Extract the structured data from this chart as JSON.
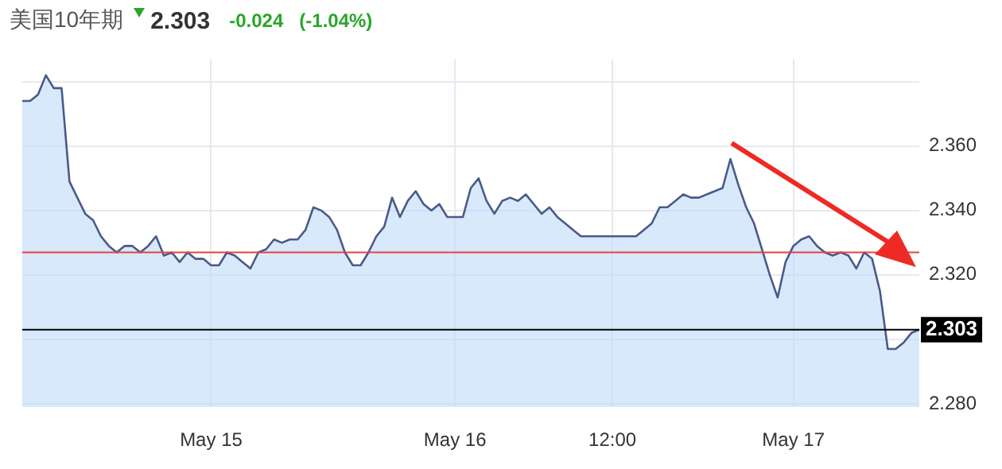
{
  "chart_data": {
    "type": "area",
    "title": "美国10年期",
    "subtitle": "2.303",
    "annotations": [
      "-0.024",
      "(-1.04%)"
    ],
    "categories": [
      null,
      null,
      null,
      null,
      null,
      null,
      null,
      null,
      null,
      null,
      null,
      null,
      null,
      null,
      null,
      null,
      null,
      null,
      null,
      null,
      null,
      null,
      null,
      null,
      "May 15",
      null,
      null,
      null,
      null,
      null,
      null,
      null,
      null,
      null,
      null,
      null,
      null,
      null,
      null,
      null,
      null,
      null,
      null,
      null,
      null,
      null,
      null,
      null,
      null,
      null,
      null,
      null,
      null,
      null,
      null,
      "May 16",
      null,
      null,
      null,
      null,
      null,
      null,
      null,
      null,
      null,
      null,
      null,
      null,
      null,
      null,
      null,
      null,
      null,
      null,
      null,
      "12:00",
      null,
      null,
      null,
      null,
      null,
      null,
      null,
      null,
      null,
      null,
      null,
      null,
      null,
      null,
      null,
      null,
      null,
      null,
      null,
      null,
      null,
      null,
      "May 17",
      null,
      null,
      null,
      null,
      null,
      null,
      null,
      null,
      null,
      null,
      null,
      null,
      null,
      null,
      null,
      null
    ],
    "series": [
      {
        "color": "#4a5a8a",
        "values": [
          2.374,
          2.374,
          2.376,
          2.382,
          2.378,
          2.378,
          2.349,
          2.344,
          2.339,
          2.337,
          2.332,
          2.329,
          2.327,
          2.329,
          2.329,
          2.327,
          2.329,
          2.332,
          2.326,
          2.327,
          2.324,
          2.327,
          2.325,
          2.325,
          2.323,
          2.323,
          2.327,
          2.326,
          2.324,
          2.322,
          2.327,
          2.328,
          2.331,
          2.33,
          2.331,
          2.331,
          2.334,
          2.341,
          2.34,
          2.338,
          2.334,
          2.327,
          2.323,
          2.323,
          2.327,
          2.332,
          2.335,
          2.344,
          2.338,
          2.343,
          2.346,
          2.342,
          2.34,
          2.342,
          2.338,
          2.338,
          2.338,
          2.347,
          2.35,
          2.343,
          2.339,
          2.343,
          2.344,
          2.343,
          2.345,
          2.342,
          2.339,
          2.341,
          2.338,
          2.336,
          2.334,
          2.332,
          2.332,
          2.332,
          2.332,
          2.332,
          2.332,
          2.332,
          2.332,
          2.334,
          2.336,
          2.341,
          2.341,
          2.343,
          2.345,
          2.344,
          2.344,
          2.345,
          2.346,
          2.347,
          2.356,
          2.348,
          2.341,
          2.336,
          2.328,
          2.32,
          2.313,
          2.324,
          2.329,
          2.331,
          2.332,
          2.329,
          2.327,
          2.326,
          2.327,
          2.326,
          2.322,
          2.327,
          2.325,
          2.315,
          2.297,
          2.297,
          2.299,
          2.302,
          2.303
        ]
      }
    ],
    "ylim": [
      2.279,
      2.387
    ],
    "yticks": [
      {
        "value": 2.28,
        "label": "2.280"
      },
      {
        "value": 2.3,
        "label": null
      },
      {
        "value": 2.32,
        "label": "2.320"
      },
      {
        "value": 2.34,
        "label": "2.340"
      },
      {
        "value": 2.36,
        "label": "2.360"
      },
      {
        "value": 2.38,
        "label": null
      }
    ],
    "ref_lines": [
      {
        "axis": "y",
        "value": 2.327,
        "color": "#e8413c"
      },
      {
        "axis": "y",
        "value": 2.303,
        "label": "2.303",
        "color": "#000000"
      }
    ],
    "grid": true,
    "legend": false,
    "marker": "none",
    "line_style": "solid"
  }
}
